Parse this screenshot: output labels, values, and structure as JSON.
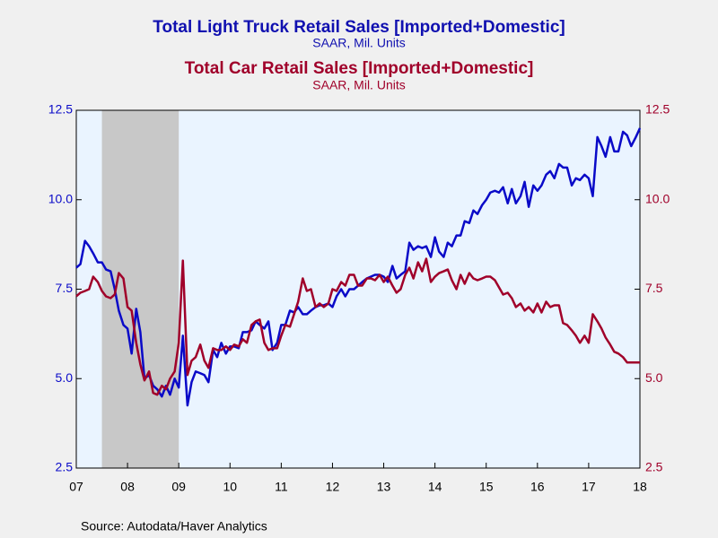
{
  "chart_data": {
    "type": "line",
    "series": [
      {
        "name": "Total Light Truck Retail Sales [Imported+Domestic]",
        "unit": "SAAR, Mil. Units",
        "color": "#0a0ac8",
        "axis": "y",
        "values": [
          8.1,
          8.2,
          8.85,
          8.7,
          8.5,
          8.25,
          8.25,
          8.05,
          8.0,
          7.5,
          6.9,
          6.5,
          6.4,
          5.7,
          6.95,
          6.3,
          5.0,
          5.1,
          4.8,
          4.7,
          4.5,
          4.8,
          4.55,
          5.0,
          4.75,
          6.2,
          4.25,
          4.9,
          5.2,
          5.15,
          5.1,
          4.9,
          5.8,
          5.6,
          6.0,
          5.7,
          5.9,
          5.9,
          5.85,
          6.3,
          6.3,
          6.35,
          6.6,
          6.5,
          6.4,
          6.6,
          5.8,
          6.0,
          6.5,
          6.5,
          6.9,
          6.85,
          7.0,
          6.8,
          6.8,
          6.9,
          7.0,
          7.05,
          7.05,
          7.1,
          7.0,
          7.3,
          7.5,
          7.3,
          7.5,
          7.5,
          7.6,
          7.7,
          7.8,
          7.85,
          7.9,
          7.9,
          7.85,
          7.7,
          8.15,
          7.8,
          7.9,
          8.0,
          8.8,
          8.6,
          8.7,
          8.65,
          8.7,
          8.4,
          8.95,
          8.55,
          8.4,
          8.8,
          8.7,
          9.0,
          9.0,
          9.4,
          9.35,
          9.7,
          9.6,
          9.85,
          10.0,
          10.2,
          10.25,
          10.2,
          10.35,
          9.9,
          10.3,
          9.9,
          10.1,
          10.5,
          9.8,
          10.4,
          10.25,
          10.4,
          10.7,
          10.8,
          10.6,
          11.0,
          10.9,
          10.9,
          10.4,
          10.6,
          10.55,
          10.7,
          10.6,
          10.1,
          11.75,
          11.5,
          11.2,
          11.75,
          11.35,
          11.35,
          11.9,
          11.8,
          11.5,
          11.75,
          12.0
        ]
      },
      {
        "name": "Total Car Retail Sales [Imported+Domestic]",
        "unit": "SAAR, Mil. Units",
        "color": "#a0002a",
        "axis": "y2",
        "values": [
          7.3,
          7.4,
          7.45,
          7.5,
          7.85,
          7.7,
          7.45,
          7.3,
          7.25,
          7.35,
          7.95,
          7.8,
          7.0,
          6.9,
          6.0,
          5.4,
          4.95,
          5.2,
          4.6,
          4.55,
          4.8,
          4.7,
          5.0,
          5.2,
          6.0,
          8.3,
          5.1,
          5.5,
          5.6,
          5.95,
          5.5,
          5.3,
          5.85,
          5.8,
          5.8,
          5.9,
          5.8,
          5.95,
          5.9,
          6.1,
          6.0,
          6.5,
          6.6,
          6.65,
          6.0,
          5.8,
          5.85,
          5.85,
          6.2,
          6.5,
          6.45,
          6.8,
          7.15,
          7.8,
          7.45,
          7.5,
          7.0,
          7.1,
          7.0,
          7.1,
          7.5,
          7.45,
          7.7,
          7.6,
          7.9,
          7.9,
          7.6,
          7.6,
          7.8,
          7.8,
          7.75,
          7.9,
          7.7,
          7.85,
          7.6,
          7.4,
          7.5,
          7.9,
          8.1,
          7.8,
          8.25,
          8.0,
          8.35,
          7.7,
          7.85,
          7.95,
          8.0,
          8.05,
          7.75,
          7.5,
          7.9,
          7.65,
          7.95,
          7.8,
          7.75,
          7.8,
          7.85,
          7.85,
          7.75,
          7.55,
          7.35,
          7.4,
          7.25,
          7.0,
          7.1,
          6.9,
          7.0,
          6.85,
          7.1,
          6.85,
          7.15,
          7.0,
          7.05,
          7.05,
          6.55,
          6.5,
          6.35,
          6.2,
          6.0,
          6.2,
          6.0,
          6.8,
          6.6,
          6.4,
          6.15,
          5.95,
          5.75,
          5.7,
          5.6,
          5.45,
          5.45,
          5.45,
          5.45
        ]
      }
    ],
    "x": [
      2007.5,
      2007.58,
      2007.67,
      2007.75,
      2007.83,
      2007.92,
      2008,
      2008.08,
      2008.17,
      2008.25,
      2008.33,
      2008.42,
      2008.5,
      2008.58,
      2008.67,
      2008.75,
      2008.83,
      2008.92,
      2009,
      2009.08,
      2009.17,
      2009.25,
      2009.33,
      2009.42,
      2009.5,
      2009.58,
      2009.67,
      2009.75,
      2009.83,
      2009.92,
      2010,
      2010.08,
      2010.17,
      2010.25,
      2010.33,
      2010.42,
      2010.5,
      2010.58,
      2010.67,
      2010.75,
      2010.83,
      2010.92,
      2011,
      2011.08,
      2011.17,
      2011.25,
      2011.33,
      2011.42,
      2011.5,
      2011.58,
      2011.67,
      2011.75,
      2011.83,
      2011.92,
      2012,
      2012.08,
      2012.17,
      2012.25,
      2012.33,
      2012.42,
      2012.5,
      2012.58,
      2012.67,
      2012.75,
      2012.83,
      2012.92,
      2013,
      2013.08,
      2013.17,
      2013.25,
      2013.33,
      2013.42,
      2013.5,
      2013.58,
      2013.67,
      2013.75,
      2013.83,
      2013.92,
      2014,
      2014.08,
      2014.17,
      2014.25,
      2014.33,
      2014.42,
      2014.5,
      2014.58,
      2014.67,
      2014.75,
      2014.83,
      2014.92,
      2015,
      2015.08,
      2015.17,
      2015.25,
      2015.33,
      2015.42,
      2015.5,
      2015.58,
      2015.67,
      2015.75,
      2015.83,
      2015.92,
      2016,
      2016.08,
      2016.17,
      2016.25,
      2016.33,
      2016.42,
      2016.5,
      2016.58,
      2016.67,
      2016.75,
      2016.83,
      2016.92,
      2017,
      2017.08,
      2017.17,
      2017.25,
      2017.33,
      2017.42,
      2017.5,
      2017.58,
      2017.67,
      2017.75,
      2017.83,
      2017.92,
      2018,
      2018.08,
      2018.17,
      2018.25,
      2018.33,
      2018.42,
      2018.5
    ],
    "xlim": [
      2007.5,
      2018.5
    ],
    "xticks": [
      {
        "value": 2007.5,
        "label": "07"
      },
      {
        "value": 2008.5,
        "label": "08"
      },
      {
        "value": 2009.5,
        "label": "09"
      },
      {
        "value": 2010.5,
        "label": "10"
      },
      {
        "value": 2011.5,
        "label": "11"
      },
      {
        "value": 2012.5,
        "label": "12"
      },
      {
        "value": 2013.5,
        "label": "13"
      },
      {
        "value": 2014.5,
        "label": "14"
      },
      {
        "value": 2015.5,
        "label": "15"
      },
      {
        "value": 2016.5,
        "label": "16"
      },
      {
        "value": 2017.5,
        "label": "17"
      },
      {
        "value": 2018.5,
        "label": "18"
      }
    ],
    "ylim": [
      2.5,
      12.5
    ],
    "yticks": [
      2.5,
      {
        "value": 5,
        "label": "5.0"
      },
      7.5,
      {
        "value": 10,
        "label": "10.0"
      },
      12.5
    ],
    "y2lim": [
      2.5,
      12.5
    ],
    "y2ticks": [
      2.5,
      {
        "value": 5,
        "label": "5.0"
      },
      7.5,
      {
        "value": 10,
        "label": "10.0"
      },
      12.5
    ],
    "shaded_ranges": [
      [
        2008,
        2009.5
      ]
    ],
    "source": "Source:  Autodata/Haver Analytics"
  }
}
